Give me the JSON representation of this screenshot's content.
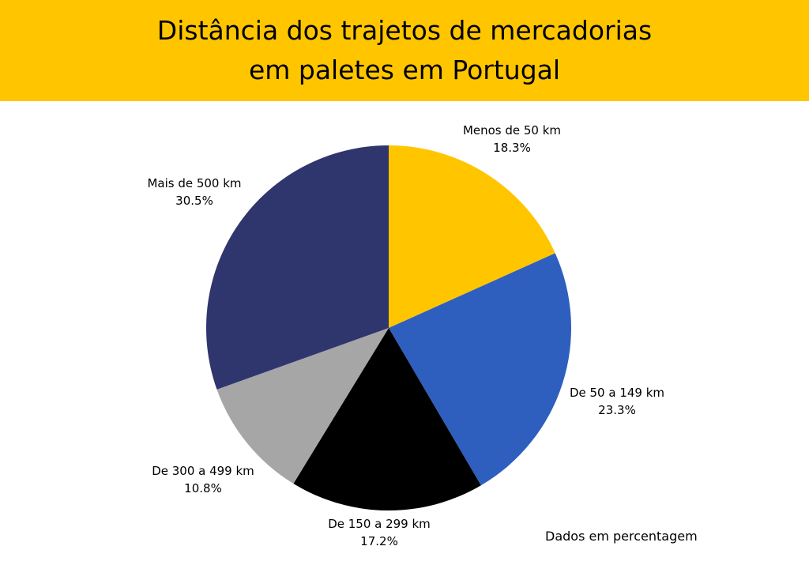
{
  "chart_data": {
    "type": "pie",
    "title": "Distância dos trajetos de mercadorias em paletes em Portugal",
    "title_lines": [
      "Distância dos trajetos de mercadorias",
      "em paletes em Portugal"
    ],
    "note": "Dados em percentagem",
    "slices": [
      {
        "label": "Menos de 50 km",
        "value": 18.3,
        "value_label": "18.3%",
        "color": "#FFC600"
      },
      {
        "label": "De 50 a 149 km",
        "value": 23.3,
        "value_label": "23.3%",
        "color": "#2F5FBE"
      },
      {
        "label": "De 150 a 299 km",
        "value": 17.2,
        "value_label": "17.2%",
        "color": "#000000"
      },
      {
        "label": "De 300 a 499 km",
        "value": 10.8,
        "value_label": "10.8%",
        "color": "#A6A6A6"
      },
      {
        "label": "Mais de 500 km",
        "value": 30.5,
        "value_label": "30.5%",
        "color": "#2F356D"
      }
    ]
  },
  "colors": {
    "banner": "#FFC600"
  }
}
